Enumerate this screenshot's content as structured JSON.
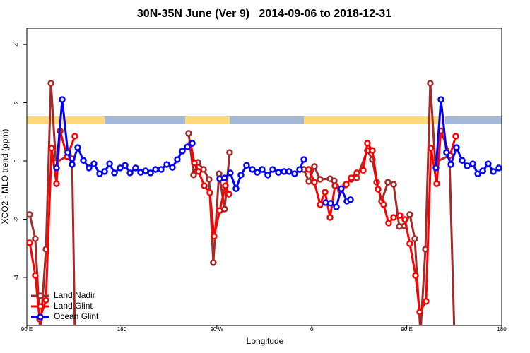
{
  "chart_data": {
    "type": "line",
    "title": "30N-35N June (Ver 9)   2014-09-06 to 2018-12-31",
    "x_label": "Longitude",
    "y_label": "XCO2 - MLO trend (ppm)",
    "xlim": [
      90,
      540
    ],
    "ylim": [
      -5.65,
      4.56
    ],
    "xticks": [
      {
        "value": 90,
        "label": "90 E"
      },
      {
        "value": 180,
        "label": "180"
      },
      {
        "value": 270,
        "label": "90 W"
      },
      {
        "value": 360,
        "label": "0"
      },
      {
        "value": 450,
        "label": "90 E"
      },
      {
        "value": 540,
        "label": "180"
      }
    ],
    "yticks": [
      -4,
      -2,
      0,
      2,
      4
    ],
    "grid": false,
    "legend": "bottom-left",
    "series": [
      {
        "name": "Land Nadir",
        "color": "#a52a2a",
        "x": [
          92.7,
          98.0,
          102.7,
          108.1,
          112.8,
          117.5,
          129.5,
          132.9,
          135.5,
          245.0,
          243.3,
          248.0,
          252.0,
          257.4,
          262.7,
          266.7,
          272.1,
          277.4,
          282.1,
          300.0,
          352.5,
          357.2,
          362.5,
          367.9,
          377.3,
          381.3,
          387.3,
          392.0,
          397.3,
          402.7,
          412.7,
          417.4,
          421.5,
          426.1,
          432.2,
          437.5,
          442.9,
          447.6,
          452.9,
          457.6,
          463.0,
          467.7,
          472.3,
          477.0,
          490.4,
          495.1
        ],
        "values": [
          -1.84,
          -2.67,
          -5.9,
          -3.03,
          2.67,
          -0.05,
          0.19,
          0.07,
          -5.9,
          null,
          0.95,
          -0.48,
          -0.05,
          -0.29,
          -0.63,
          -3.49,
          -0.44,
          -1.65,
          0.29,
          null,
          -0.29,
          -0.7,
          -0.19,
          -0.63,
          -0.61,
          -0.68,
          -0.97,
          -0.82,
          -0.63,
          -0.58,
          0.36,
          0.05,
          -0.73,
          -1.38,
          -0.73,
          -0.8,
          -2.25,
          -2.23,
          -1.84,
          -2.67,
          -5.9,
          -3.03,
          2.67,
          -0.05,
          0.19,
          -5.9
        ]
      },
      {
        "name": "Land Glint",
        "color": "#ff0000",
        "x": [
          92.7,
          98.0,
          102.1,
          108.1,
          113.4,
          118.1,
          121.5,
          128.2,
          135.5,
          200.0,
          245.3,
          248.7,
          252.7,
          258.1,
          263.4,
          267.4,
          272.8,
          278.1,
          281.5,
          320.0,
          357.2,
          362.5,
          367.9,
          372.6,
          377.3,
          382.0,
          387.3,
          392.7,
          397.3,
          402.7,
          408.7,
          412.7,
          417.4,
          422.8,
          428.1,
          432.8,
          437.5,
          443.5,
          448.2,
          452.9,
          458.3,
          462.3,
          468.3,
          473.0,
          478.4,
          482.4,
          491.1,
          496.4
        ],
        "values": [
          -2.81,
          -3.93,
          -5.43,
          -4.78,
          0.44,
          -0.78,
          1.03,
          0.15,
          0.85,
          null,
          0.58,
          -0.07,
          -0.36,
          -0.85,
          -1.09,
          -2.59,
          -1.7,
          -0.85,
          -1.14,
          null,
          -0.29,
          -0.73,
          -1.5,
          -1.07,
          -1.94,
          -0.85,
          -1.02,
          -0.8,
          -0.58,
          -0.41,
          -0.32,
          0.61,
          0.36,
          -0.97,
          -1.5,
          -2.13,
          -1.94,
          -1.87,
          -2.01,
          -2.84,
          -3.93,
          -5.19,
          -4.82,
          0.44,
          -0.78,
          1.03,
          0.19,
          0.85
        ]
      },
      {
        "name": "Ocean Glint",
        "color": "#0000ff",
        "x": [
          118.1,
          123.5,
          128.8,
          132.9,
          138.2,
          143.6,
          148.9,
          153.6,
          159.0,
          163.7,
          168.4,
          173.0,
          178.4,
          183.1,
          187.8,
          193.1,
          197.8,
          202.5,
          207.2,
          211.9,
          217.2,
          222.6,
          227.9,
          232.6,
          237.3,
          242.0,
          246.7,
          260.0,
          272.8,
          277.4,
          282.8,
          288.2,
          292.9,
          298.2,
          303.6,
          308.3,
          313.0,
          318.3,
          323.0,
          328.4,
          333.7,
          338.4,
          343.8,
          348.5,
          352.5,
          365.0,
          373.2,
          377.9,
          383.3,
          387.9,
          393.3,
          396.7,
          450.0,
          477.7,
          482.4,
          487.7,
          491.8,
          497.1,
          502.5,
          507.2,
          512.6,
          517.3,
          522.0,
          527.2,
          532.0,
          537.3
        ],
        "values": [
          -0.24,
          2.11,
          0.29,
          -0.12,
          0.46,
          0.02,
          -0.24,
          -0.1,
          -0.44,
          -0.36,
          -0.1,
          -0.41,
          -0.24,
          -0.15,
          -0.41,
          -0.24,
          -0.39,
          -0.34,
          -0.41,
          -0.29,
          -0.29,
          -0.12,
          -0.22,
          0.05,
          0.34,
          0.48,
          0.61,
          null,
          -0.61,
          -0.58,
          -0.41,
          -0.95,
          -0.48,
          -0.15,
          -0.29,
          -0.39,
          -0.29,
          -0.48,
          -0.29,
          -0.39,
          -0.36,
          -0.36,
          -0.44,
          -0.29,
          0.05,
          null,
          -1.43,
          -1.45,
          -1.58,
          -0.95,
          -1.38,
          -1.33,
          null,
          -0.24,
          2.11,
          0.29,
          -0.12,
          0.46,
          0.02,
          -0.17,
          -0.1,
          -0.44,
          -0.34,
          -0.1,
          -0.36,
          -0.24
        ]
      }
    ]
  }
}
